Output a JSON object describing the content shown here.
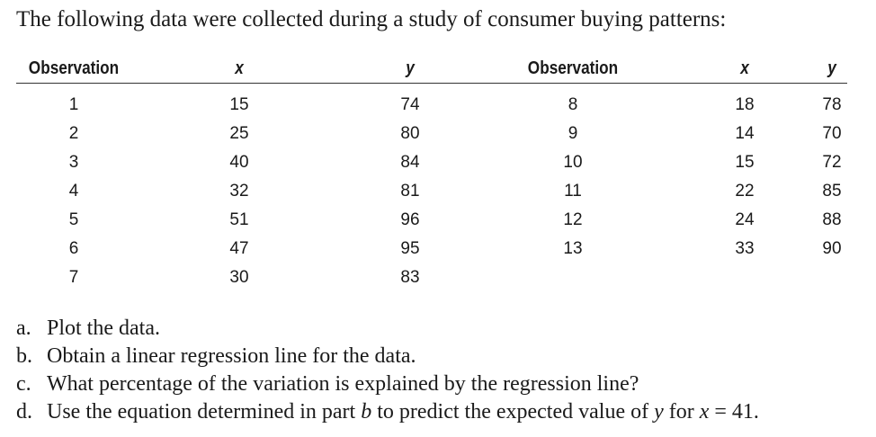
{
  "intro": "The following data were collected during a study of consumer buying patterns:",
  "table": {
    "headers": [
      "Observation",
      "x",
      "y",
      "Observation",
      "x",
      "y"
    ],
    "rows": [
      [
        "1",
        "15",
        "74",
        "8",
        "18",
        "78"
      ],
      [
        "2",
        "25",
        "80",
        "9",
        "14",
        "70"
      ],
      [
        "3",
        "40",
        "84",
        "10",
        "15",
        "72"
      ],
      [
        "4",
        "32",
        "81",
        "11",
        "22",
        "85"
      ],
      [
        "5",
        "51",
        "96",
        "12",
        "24",
        "88"
      ],
      [
        "6",
        "47",
        "95",
        "13",
        "33",
        "90"
      ],
      [
        "7",
        "30",
        "83",
        "",
        "",
        ""
      ]
    ]
  },
  "parts": {
    "a": {
      "letter": "a.",
      "text": "Plot the data."
    },
    "b": {
      "letter": "b.",
      "text": "Obtain a linear regression line for the data."
    },
    "c": {
      "letter": "c.",
      "text": "What percentage of the variation is explained by the regression line?"
    },
    "d": {
      "letter": "d.",
      "pre": "Use the equation determined in part ",
      "var_b": "b",
      "mid1": " to predict the expected value of ",
      "var_y": "y",
      "mid2": " for ",
      "var_x": "x",
      "post": " = 41."
    }
  }
}
